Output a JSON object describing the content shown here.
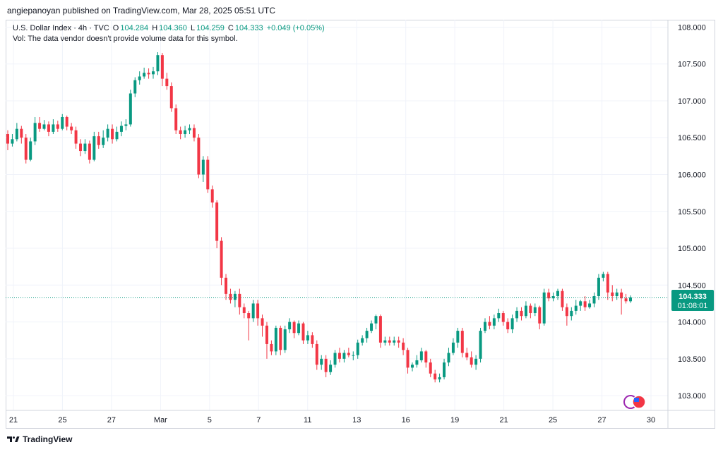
{
  "publisher_line": "angiepanoyan published on TradingView.com, Mar 28, 2025 05:51 UTC",
  "legend": {
    "symbol": "U.S. Dollar Index · 4h · TVC",
    "o_label": "O",
    "o": "104.284",
    "h_label": "H",
    "h": "104.360",
    "l_label": "L",
    "l": "104.259",
    "c_label": "C",
    "c": "104.333",
    "change": "+0.049 (+0.05%)",
    "vol_note": "Vol: The data vendor doesn't provide volume data for this symbol."
  },
  "price_tag": {
    "price": "104.333",
    "countdown": "01:08:01"
  },
  "footer_brand": "TradingView",
  "colors": {
    "up": "#089981",
    "down": "#f23645",
    "grid": "#f0f3fa",
    "text": "#131722",
    "price_line": "#089981"
  },
  "chart_data": {
    "type": "candlestick",
    "ylim": [
      102.8,
      108.1
    ],
    "y_ticks": [
      "108.000",
      "107.500",
      "107.000",
      "106.500",
      "106.000",
      "105.500",
      "105.000",
      "104.500",
      "104.000",
      "103.500",
      "103.000"
    ],
    "x_ticks": [
      "21",
      "25",
      "27",
      "Mar",
      "5",
      "7",
      "11",
      "13",
      "16",
      "19",
      "21",
      "25",
      "27",
      "30"
    ],
    "last_price": 104.333,
    "candles": [
      [
        106.55,
        106.42,
        106.6,
        106.33
      ],
      [
        106.42,
        106.48,
        106.55,
        106.38
      ],
      [
        106.48,
        106.62,
        106.7,
        106.45
      ],
      [
        106.62,
        106.5,
        106.66,
        106.42
      ],
      [
        106.5,
        106.2,
        106.55,
        106.15
      ],
      [
        106.2,
        106.45,
        106.5,
        106.18
      ],
      [
        106.45,
        106.7,
        106.78,
        106.4
      ],
      [
        106.7,
        106.62,
        106.78,
        106.58
      ],
      [
        106.62,
        106.68,
        106.74,
        106.6
      ],
      [
        106.68,
        106.58,
        106.72,
        106.52
      ],
      [
        106.58,
        106.68,
        106.75,
        106.55
      ],
      [
        106.68,
        106.62,
        106.73,
        106.58
      ],
      [
        106.62,
        106.78,
        106.82,
        106.6
      ],
      [
        106.78,
        106.65,
        106.8,
        106.6
      ],
      [
        106.65,
        106.6,
        106.7,
        106.55
      ],
      [
        106.6,
        106.42,
        106.65,
        106.35
      ],
      [
        106.42,
        106.32,
        106.48,
        106.25
      ],
      [
        106.32,
        106.42,
        106.48,
        106.28
      ],
      [
        106.42,
        106.2,
        106.46,
        106.15
      ],
      [
        106.2,
        106.52,
        106.58,
        106.18
      ],
      [
        106.52,
        106.4,
        106.58,
        106.35
      ],
      [
        106.4,
        106.5,
        106.6,
        106.36
      ],
      [
        106.5,
        106.62,
        106.68,
        106.45
      ],
      [
        106.62,
        106.48,
        106.68,
        106.42
      ],
      [
        106.48,
        106.58,
        106.65,
        106.45
      ],
      [
        106.58,
        106.66,
        106.72,
        106.52
      ],
      [
        106.66,
        106.68,
        106.75,
        106.6
      ],
      [
        106.68,
        107.1,
        107.15,
        106.65
      ],
      [
        107.1,
        107.28,
        107.32,
        107.05
      ],
      [
        107.28,
        107.33,
        107.4,
        107.22
      ],
      [
        107.33,
        107.38,
        107.45,
        107.3
      ],
      [
        107.38,
        107.36,
        107.44,
        107.3
      ],
      [
        107.36,
        107.4,
        107.46,
        107.3
      ],
      [
        107.4,
        107.62,
        107.66,
        107.35
      ],
      [
        107.62,
        107.3,
        107.65,
        107.2
      ],
      [
        107.3,
        107.2,
        107.38,
        107.15
      ],
      [
        107.2,
        106.9,
        107.25,
        106.85
      ],
      [
        106.9,
        106.6,
        106.95,
        106.55
      ],
      [
        106.6,
        106.55,
        106.65,
        106.48
      ],
      [
        106.55,
        106.6,
        106.66,
        106.5
      ],
      [
        106.6,
        106.63,
        106.68,
        106.55
      ],
      [
        106.63,
        106.5,
        106.68,
        106.45
      ],
      [
        106.5,
        106.0,
        106.55,
        105.95
      ],
      [
        106.0,
        106.2,
        106.25,
        105.9
      ],
      [
        106.2,
        105.8,
        106.25,
        105.75
      ],
      [
        105.8,
        105.62,
        105.85,
        105.55
      ],
      [
        105.62,
        105.1,
        105.65,
        105.0
      ],
      [
        105.1,
        104.6,
        105.15,
        104.5
      ],
      [
        104.6,
        104.38,
        104.65,
        104.3
      ],
      [
        104.38,
        104.3,
        104.45,
        104.25
      ],
      [
        104.3,
        104.38,
        104.42,
        104.2
      ],
      [
        104.38,
        104.2,
        104.45,
        104.1
      ],
      [
        104.2,
        104.12,
        104.25,
        104.05
      ],
      [
        104.12,
        104.05,
        104.15,
        103.75
      ],
      [
        104.05,
        104.25,
        104.3,
        104.0
      ],
      [
        104.25,
        104.05,
        104.3,
        103.95
      ],
      [
        104.05,
        103.95,
        104.1,
        103.8
      ],
      [
        103.95,
        103.7,
        104.0,
        103.5
      ],
      [
        103.7,
        103.6,
        103.75,
        103.55
      ],
      [
        103.6,
        103.92,
        103.95,
        103.55
      ],
      [
        103.92,
        103.62,
        103.95,
        103.55
      ],
      [
        103.62,
        103.9,
        103.95,
        103.58
      ],
      [
        103.9,
        104.0,
        104.05,
        103.85
      ],
      [
        104.0,
        103.85,
        104.02,
        103.78
      ],
      [
        103.85,
        103.98,
        104.02,
        103.82
      ],
      [
        103.98,
        103.75,
        104.0,
        103.7
      ],
      [
        103.75,
        103.82,
        103.88,
        103.7
      ],
      [
        103.82,
        103.7,
        103.86,
        103.65
      ],
      [
        103.7,
        103.42,
        103.75,
        103.35
      ],
      [
        103.42,
        103.5,
        103.55,
        103.35
      ],
      [
        103.5,
        103.32,
        103.55,
        103.25
      ],
      [
        103.32,
        103.42,
        103.48,
        103.28
      ],
      [
        103.42,
        103.58,
        103.62,
        103.38
      ],
      [
        103.58,
        103.5,
        103.65,
        103.45
      ],
      [
        103.5,
        103.58,
        103.62,
        103.45
      ],
      [
        103.58,
        103.55,
        103.65,
        103.52
      ],
      [
        103.55,
        103.55,
        103.6,
        103.48
      ],
      [
        103.55,
        103.72,
        103.76,
        103.5
      ],
      [
        103.72,
        103.78,
        103.82,
        103.68
      ],
      [
        103.78,
        103.88,
        103.92,
        103.72
      ],
      [
        103.88,
        103.98,
        104.02,
        103.85
      ],
      [
        103.98,
        104.08,
        104.1,
        103.9
      ],
      [
        104.08,
        103.72,
        104.1,
        103.65
      ],
      [
        103.72,
        103.75,
        103.8,
        103.68
      ],
      [
        103.75,
        103.72,
        103.8,
        103.68
      ],
      [
        103.72,
        103.75,
        103.8,
        103.68
      ],
      [
        103.75,
        103.72,
        103.8,
        103.65
      ],
      [
        103.72,
        103.62,
        103.78,
        103.55
      ],
      [
        103.62,
        103.38,
        103.65,
        103.3
      ],
      [
        103.38,
        103.42,
        103.45,
        103.33
      ],
      [
        103.42,
        103.48,
        103.55,
        103.38
      ],
      [
        103.48,
        103.6,
        103.65,
        103.45
      ],
      [
        103.6,
        103.45,
        103.62,
        103.38
      ],
      [
        103.45,
        103.3,
        103.5,
        103.25
      ],
      [
        103.3,
        103.22,
        103.35,
        103.18
      ],
      [
        103.22,
        103.25,
        103.3,
        103.18
      ],
      [
        103.25,
        103.45,
        103.5,
        103.22
      ],
      [
        103.45,
        103.58,
        103.65,
        103.4
      ],
      [
        103.58,
        103.72,
        103.78,
        103.55
      ],
      [
        103.72,
        103.88,
        103.92,
        103.65
      ],
      [
        103.88,
        103.58,
        103.92,
        103.52
      ],
      [
        103.58,
        103.52,
        103.65,
        103.48
      ],
      [
        103.52,
        103.42,
        103.6,
        103.38
      ],
      [
        103.42,
        103.5,
        103.55,
        103.35
      ],
      [
        103.5,
        103.88,
        103.92,
        103.45
      ],
      [
        103.88,
        104.0,
        104.05,
        103.85
      ],
      [
        104.0,
        103.95,
        104.08,
        103.9
      ],
      [
        103.95,
        104.05,
        104.1,
        103.9
      ],
      [
        104.05,
        104.12,
        104.18,
        104.0
      ],
      [
        104.12,
        104.0,
        104.15,
        103.95
      ],
      [
        104.0,
        103.9,
        104.05,
        103.85
      ],
      [
        103.9,
        104.05,
        104.1,
        103.85
      ],
      [
        104.05,
        104.15,
        104.2,
        104.0
      ],
      [
        104.15,
        104.08,
        104.2,
        104.02
      ],
      [
        104.08,
        104.22,
        104.28,
        104.05
      ],
      [
        104.22,
        104.12,
        104.25,
        104.05
      ],
      [
        104.12,
        104.2,
        104.25,
        104.08
      ],
      [
        104.2,
        103.98,
        104.22,
        103.9
      ],
      [
        103.98,
        104.4,
        104.45,
        103.95
      ],
      [
        104.4,
        104.32,
        104.45,
        104.28
      ],
      [
        104.32,
        104.35,
        104.4,
        104.28
      ],
      [
        104.35,
        104.42,
        104.45,
        104.3
      ],
      [
        104.42,
        104.2,
        104.45,
        104.15
      ],
      [
        104.2,
        104.08,
        104.25,
        103.95
      ],
      [
        104.08,
        104.15,
        104.2,
        104.02
      ],
      [
        104.15,
        104.22,
        104.3,
        104.1
      ],
      [
        104.22,
        104.28,
        104.3,
        104.15
      ],
      [
        104.28,
        104.2,
        104.35,
        104.15
      ],
      [
        104.2,
        104.25,
        104.3,
        104.18
      ],
      [
        104.25,
        104.35,
        104.4,
        104.2
      ],
      [
        104.35,
        104.6,
        104.65,
        104.3
      ],
      [
        104.6,
        104.65,
        104.68,
        104.55
      ],
      [
        104.65,
        104.4,
        104.68,
        104.3
      ],
      [
        104.4,
        104.35,
        104.5,
        104.28
      ],
      [
        104.35,
        104.4,
        104.45,
        104.3
      ],
      [
        104.4,
        104.32,
        104.45,
        104.1
      ],
      [
        104.32,
        104.28,
        104.38,
        104.25
      ],
      [
        104.28,
        104.333,
        104.36,
        104.259
      ]
    ]
  }
}
